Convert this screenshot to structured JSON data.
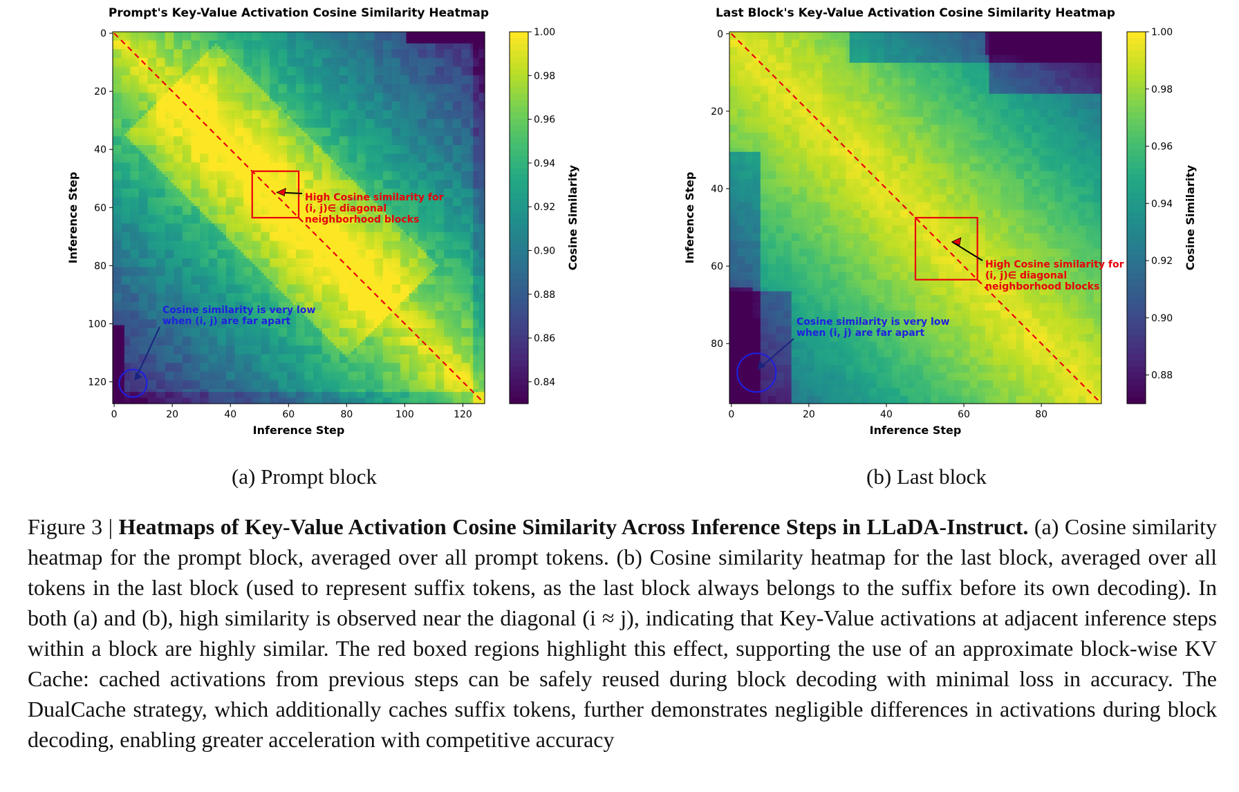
{
  "chart_data": [
    {
      "type": "heatmap",
      "title": "Prompt's Key-Value Activation Cosine Similarity Heatmap",
      "xlabel": "Inference Step",
      "ylabel": "Inference Step",
      "xlim": [
        0,
        128
      ],
      "ylim": [
        0,
        128
      ],
      "x_ticks": [
        "0",
        "20",
        "40",
        "60",
        "80",
        "100",
        "120"
      ],
      "y_ticks": [
        "0",
        "20",
        "40",
        "60",
        "80",
        "100",
        "120"
      ],
      "colorbar_label": "Cosine Similarity",
      "colorbar_range": [
        0.83,
        1.0
      ],
      "colorbar_ticks": [
        "0.84",
        "0.86",
        "0.88",
        "0.90",
        "0.92",
        "0.94",
        "0.96",
        "0.98",
        "1.00"
      ],
      "colormap": "viridis",
      "diagonal_line": {
        "color": "#e8000b",
        "style": "dashed"
      },
      "highlight_box": {
        "x": [
          48,
          64
        ],
        "y": [
          48,
          64
        ],
        "color": "#e8000b"
      },
      "highlight_circle": {
        "center": [
          7,
          121
        ],
        "color": "#1f1fe0"
      },
      "annotations": [
        {
          "text": [
            "High Cosine similarity for",
            "(i, j)∈ diagonal",
            "neighborhood blocks"
          ],
          "color": "#e8000b"
        },
        {
          "text": [
            "Cosine similarity is very low",
            "when (i, j) are far apart"
          ],
          "color": "#1f1fe0"
        }
      ]
    },
    {
      "type": "heatmap",
      "title": "Last Block's Key-Value Activation Cosine Similarity Heatmap",
      "xlabel": "Inference Step",
      "ylabel": "Inference Step",
      "xlim": [
        0,
        96
      ],
      "ylim": [
        0,
        96
      ],
      "x_ticks": [
        "0",
        "20",
        "40",
        "60",
        "80"
      ],
      "y_ticks": [
        "0",
        "20",
        "40",
        "60",
        "80"
      ],
      "colorbar_label": "Cosine Similarity",
      "colorbar_range": [
        0.87,
        1.0
      ],
      "colorbar_ticks": [
        "0.88",
        "0.90",
        "0.92",
        "0.94",
        "0.96",
        "0.98",
        "1.00"
      ],
      "colormap": "viridis",
      "diagonal_line": {
        "color": "#e8000b",
        "style": "dashed"
      },
      "highlight_box": {
        "x": [
          48,
          64
        ],
        "y": [
          48,
          64
        ],
        "color": "#e8000b"
      },
      "highlight_circle": {
        "center": [
          7,
          88
        ],
        "color": "#1f1fe0"
      },
      "annotations": [
        {
          "text": [
            "High Cosine similarity for",
            "(i, j)∈ diagonal",
            "neighborhood blocks"
          ],
          "color": "#e8000b"
        },
        {
          "text": [
            "Cosine similarity is very low",
            "when (i, j) are far apart"
          ],
          "color": "#1f1fe0"
        }
      ]
    }
  ],
  "panel_labels": [
    "(a) Prompt block",
    "(b) Last block"
  ],
  "caption": {
    "prefix": "Figure 3 | ",
    "title": "Heatmaps of Key-Value Activation Cosine Similarity Across Inference Steps in LLaDA-Instruct.",
    "body": " (a) Cosine similarity heatmap for the prompt block, averaged over all prompt tokens. (b) Cosine similarity heatmap for the last block, averaged over all tokens in the last block (used to represent suffix tokens, as the last block always belongs to the suffix before its own decoding). In both (a) and (b), high similarity is observed near the diagonal (i ≈ j), indicating that Key-Value activations at adjacent inference steps within a block are highly similar. The red boxed regions highlight this effect, supporting the use of an approximate block-wise KV Cache: cached activations from previous steps can be safely reused during block decoding with minimal loss in accuracy. The DualCache strategy, which additionally caches suffix tokens, further demonstrates negligible differences in activations during block decoding, enabling greater acceleration with competitive accuracy"
  }
}
